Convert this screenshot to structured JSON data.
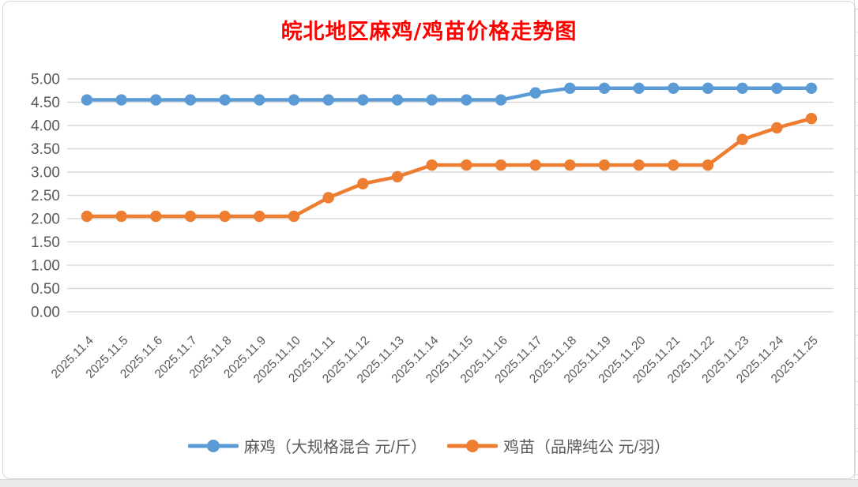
{
  "title": "皖北地区麻鸡/鸡苗价格走势图",
  "title_color": "#FF0000",
  "chart_data": {
    "type": "line",
    "title": "皖北地区麻鸡/鸡苗价格走势图",
    "x": [
      "2025.11.4",
      "2025.11.5",
      "2025.11.6",
      "2025.11.7",
      "2025.11.8",
      "2025.11.9",
      "2025.11.10",
      "2025.11.11",
      "2025.11.12",
      "2025.11.13",
      "2025.11.14",
      "2025.11.15",
      "2025.11.16",
      "2025.11.17",
      "2025.11.18",
      "2025.11.19",
      "2025.11.20",
      "2025.11.21",
      "2025.11.22",
      "2025.11.23",
      "2025.11.24",
      "2025.11.25"
    ],
    "series": [
      {
        "name": "麻鸡（大规格混合 元/斤）",
        "color": "#5B9BD5",
        "values": [
          4.55,
          4.55,
          4.55,
          4.55,
          4.55,
          4.55,
          4.55,
          4.55,
          4.55,
          4.55,
          4.55,
          4.55,
          4.55,
          4.7,
          4.8,
          4.8,
          4.8,
          4.8,
          4.8,
          4.8,
          4.8,
          4.8
        ]
      },
      {
        "name": "鸡苗（品牌纯公 元/羽）",
        "color": "#ED7D31",
        "values": [
          2.05,
          2.05,
          2.05,
          2.05,
          2.05,
          2.05,
          2.05,
          2.45,
          2.75,
          2.9,
          3.15,
          3.15,
          3.15,
          3.15,
          3.15,
          3.15,
          3.15,
          3.15,
          3.15,
          3.7,
          3.95,
          4.15
        ]
      }
    ],
    "ylim": [
      0,
      5
    ],
    "ytick_step": 0.5,
    "y_tick_labels": [
      "0.00",
      "0.50",
      "1.00",
      "1.50",
      "2.00",
      "2.50",
      "3.00",
      "3.50",
      "4.00",
      "4.50",
      "5.00"
    ],
    "xlabel": "",
    "ylabel": "",
    "grid": "horizontal",
    "gridline_color": "#D9D9D9",
    "axis_text_color": "#595959",
    "legend_position": "bottom"
  }
}
